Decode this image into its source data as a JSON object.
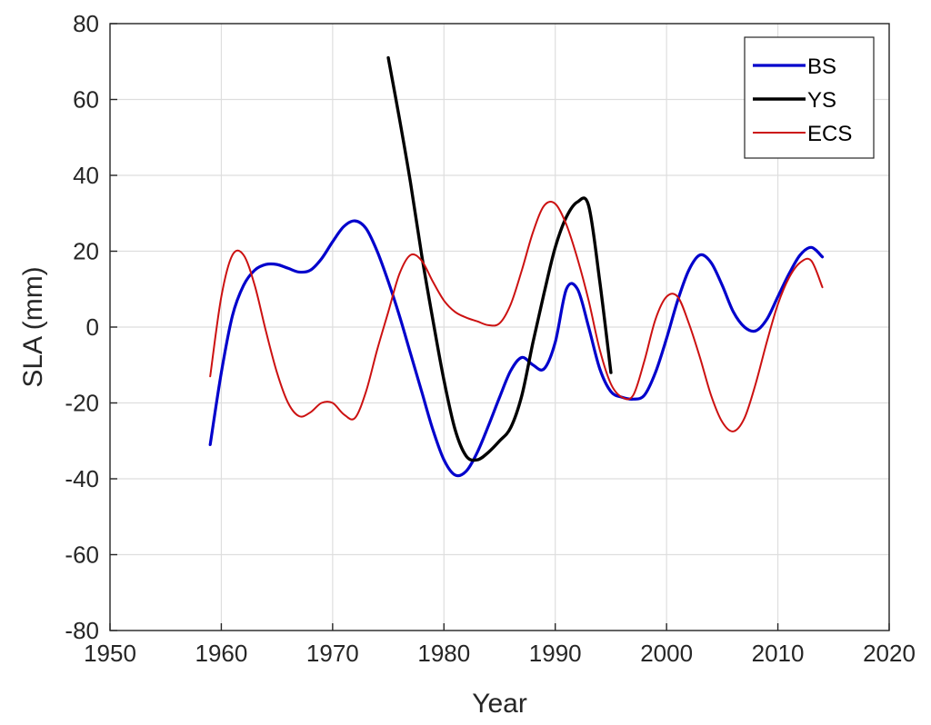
{
  "chart_data": {
    "type": "line",
    "xlabel": "Year",
    "ylabel": "SLA (mm)",
    "xlim": [
      1950,
      2020
    ],
    "ylim": [
      -80,
      80
    ],
    "xticks": [
      1950,
      1960,
      1970,
      1980,
      1990,
      2000,
      2010,
      2020
    ],
    "yticks": [
      -80,
      -60,
      -40,
      -20,
      0,
      20,
      40,
      60,
      80
    ],
    "grid": true,
    "legend_position": "top-right",
    "series": [
      {
        "name": "BS",
        "color": "#0000cc",
        "points": [
          [
            1959,
            -31
          ],
          [
            1960,
            -12
          ],
          [
            1961,
            3
          ],
          [
            1962,
            11
          ],
          [
            1963,
            15
          ],
          [
            1964,
            16.5
          ],
          [
            1965,
            16.5
          ],
          [
            1966,
            15.5
          ],
          [
            1967,
            14.5
          ],
          [
            1968,
            15
          ],
          [
            1969,
            18
          ],
          [
            1970,
            22.5
          ],
          [
            1971,
            26.5
          ],
          [
            1972,
            28
          ],
          [
            1973,
            26
          ],
          [
            1974,
            20
          ],
          [
            1975,
            12
          ],
          [
            1976,
            3
          ],
          [
            1977,
            -7
          ],
          [
            1978,
            -17
          ],
          [
            1979,
            -27
          ],
          [
            1980,
            -35
          ],
          [
            1981,
            -39
          ],
          [
            1982,
            -38
          ],
          [
            1983,
            -33
          ],
          [
            1984,
            -26
          ],
          [
            1985,
            -18.5
          ],
          [
            1986,
            -11.5
          ],
          [
            1987,
            -8
          ],
          [
            1988,
            -10
          ],
          [
            1989,
            -11
          ],
          [
            1990,
            -4
          ],
          [
            1991,
            10
          ],
          [
            1992,
            10
          ],
          [
            1993,
            0
          ],
          [
            1994,
            -11
          ],
          [
            1995,
            -17
          ],
          [
            1996,
            -18.5
          ],
          [
            1997,
            -19
          ],
          [
            1998,
            -18
          ],
          [
            1999,
            -12
          ],
          [
            2000,
            -3
          ],
          [
            2001,
            7
          ],
          [
            2002,
            15
          ],
          [
            2003,
            19
          ],
          [
            2004,
            17
          ],
          [
            2005,
            11
          ],
          [
            2006,
            4
          ],
          [
            2007,
            0
          ],
          [
            2008,
            -1
          ],
          [
            2009,
            2
          ],
          [
            2010,
            8
          ],
          [
            2011,
            14
          ],
          [
            2012,
            19
          ],
          [
            2013,
            21
          ],
          [
            2014,
            18.5
          ]
        ]
      },
      {
        "name": "YS",
        "color": "#000000",
        "points": [
          [
            1975,
            71
          ],
          [
            1976,
            55
          ],
          [
            1977,
            38
          ],
          [
            1978,
            19
          ],
          [
            1979,
            2
          ],
          [
            1980,
            -14
          ],
          [
            1981,
            -27
          ],
          [
            1982,
            -34
          ],
          [
            1983,
            -35
          ],
          [
            1984,
            -33
          ],
          [
            1985,
            -30
          ],
          [
            1986,
            -26.5
          ],
          [
            1987,
            -18
          ],
          [
            1988,
            -4
          ],
          [
            1989,
            9
          ],
          [
            1990,
            21
          ],
          [
            1991,
            29
          ],
          [
            1992,
            33
          ],
          [
            1993,
            32
          ],
          [
            1994,
            12
          ],
          [
            1995,
            -12
          ]
        ]
      },
      {
        "name": "ECS",
        "color": "#cc1111",
        "points": [
          [
            1959,
            -13
          ],
          [
            1960,
            8
          ],
          [
            1961,
            19
          ],
          [
            1962,
            19
          ],
          [
            1963,
            11
          ],
          [
            1964,
            -1
          ],
          [
            1965,
            -12
          ],
          [
            1966,
            -20
          ],
          [
            1967,
            -23.5
          ],
          [
            1968,
            -22.5
          ],
          [
            1969,
            -20
          ],
          [
            1970,
            -20
          ],
          [
            1971,
            -23
          ],
          [
            1972,
            -24
          ],
          [
            1973,
            -17
          ],
          [
            1974,
            -6
          ],
          [
            1975,
            4
          ],
          [
            1976,
            14
          ],
          [
            1977,
            19
          ],
          [
            1978,
            17.5
          ],
          [
            1979,
            12
          ],
          [
            1980,
            7
          ],
          [
            1981,
            4
          ],
          [
            1982,
            2.5
          ],
          [
            1983,
            1.5
          ],
          [
            1984,
            0.5
          ],
          [
            1985,
            1
          ],
          [
            1986,
            6
          ],
          [
            1987,
            15
          ],
          [
            1988,
            25
          ],
          [
            1989,
            32
          ],
          [
            1990,
            32.5
          ],
          [
            1991,
            27
          ],
          [
            1992,
            18
          ],
          [
            1993,
            7
          ],
          [
            1994,
            -6
          ],
          [
            1995,
            -15
          ],
          [
            1996,
            -18.5
          ],
          [
            1997,
            -18
          ],
          [
            1998,
            -9
          ],
          [
            1999,
            2
          ],
          [
            2000,
            8
          ],
          [
            2001,
            8
          ],
          [
            2002,
            1
          ],
          [
            2003,
            -8
          ],
          [
            2004,
            -18
          ],
          [
            2005,
            -25
          ],
          [
            2006,
            -27.5
          ],
          [
            2007,
            -24
          ],
          [
            2008,
            -15
          ],
          [
            2009,
            -4
          ],
          [
            2010,
            6
          ],
          [
            2011,
            13
          ],
          [
            2012,
            17
          ],
          [
            2013,
            17.5
          ],
          [
            2014,
            10.5
          ]
        ]
      }
    ]
  }
}
